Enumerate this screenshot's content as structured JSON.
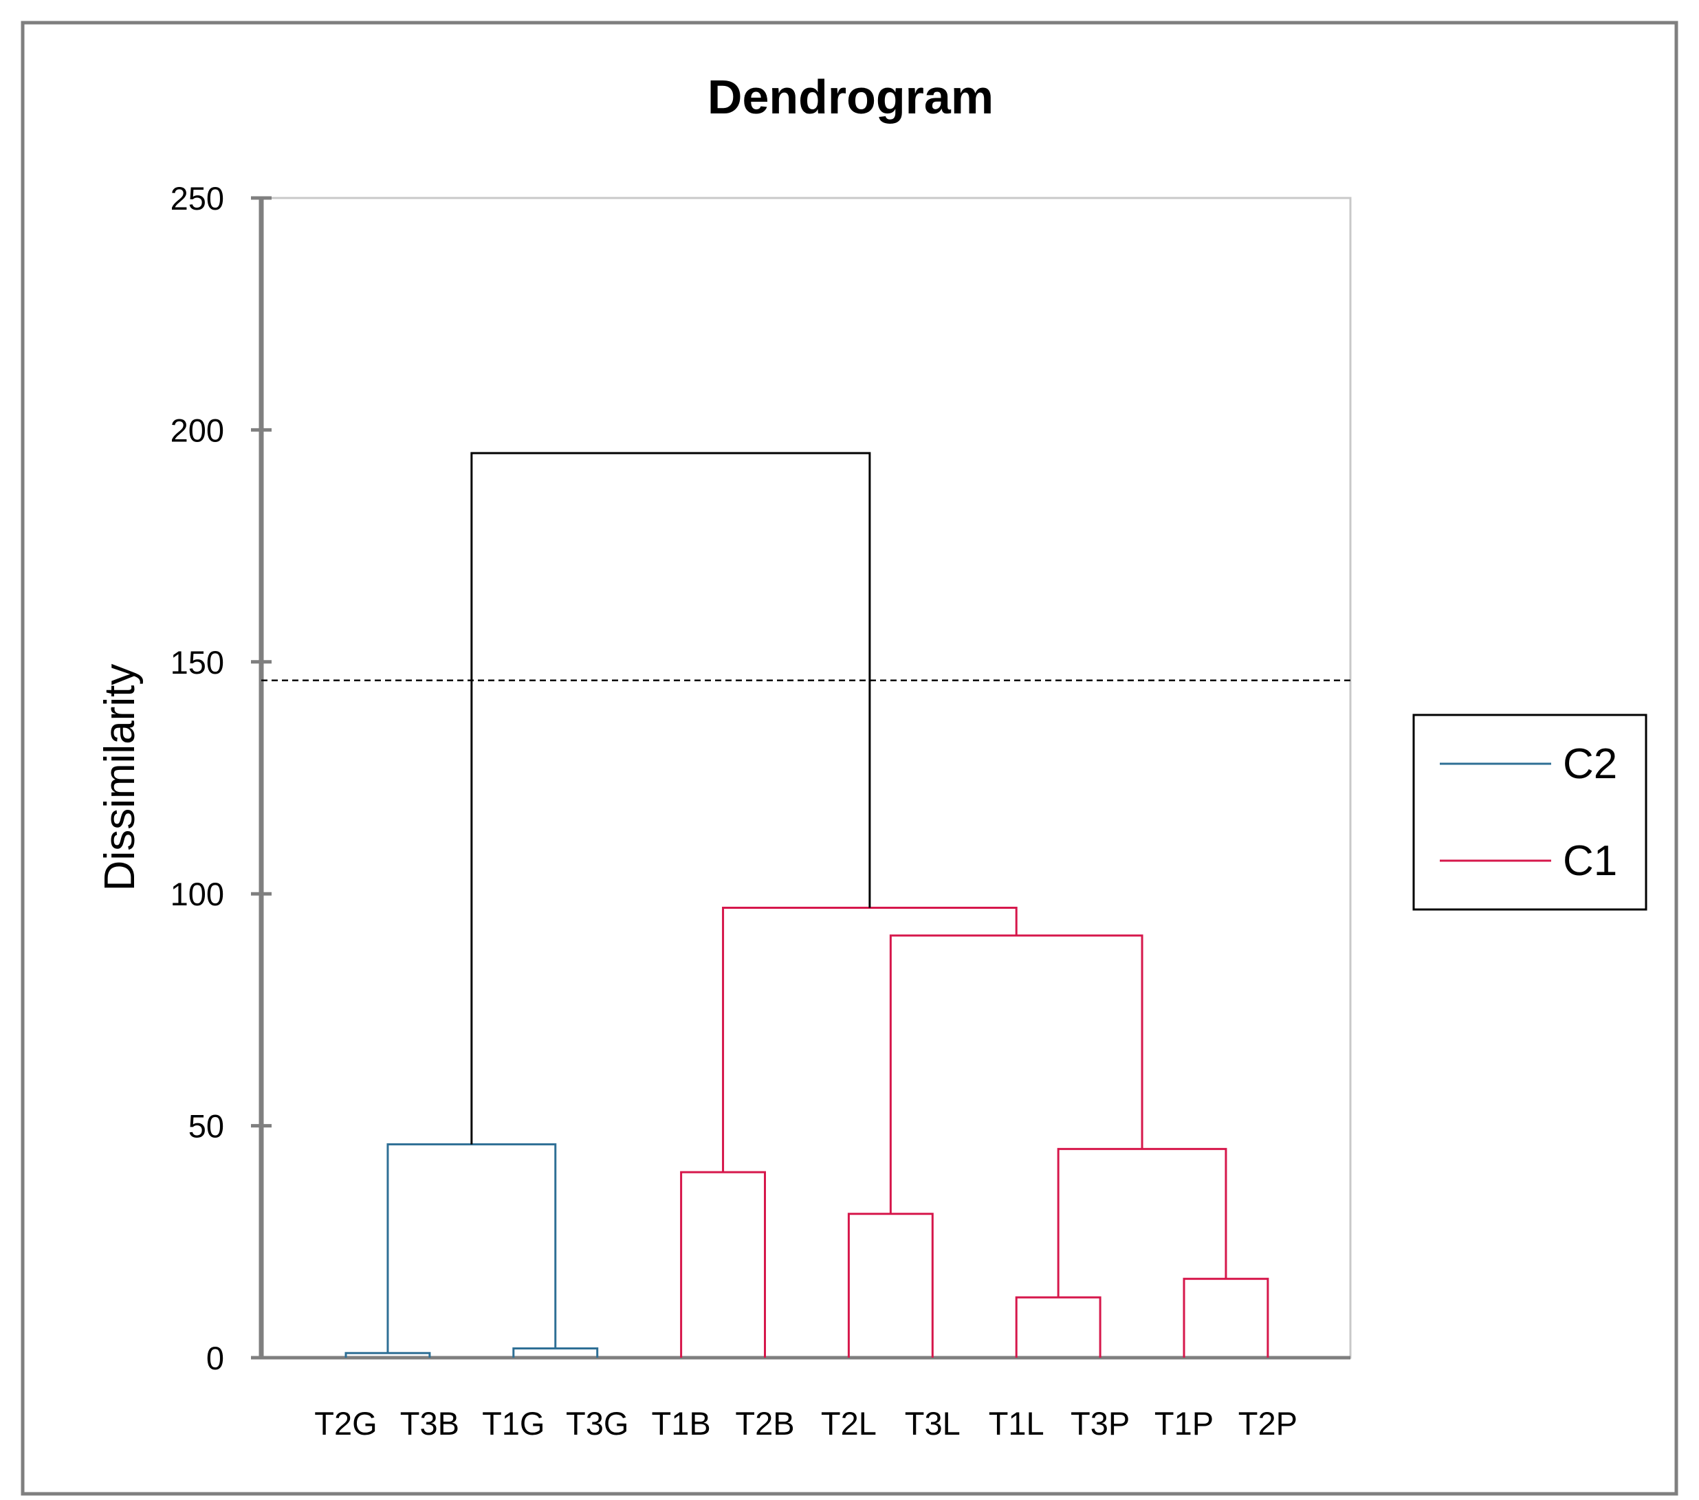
{
  "chart_data": {
    "type": "dendrogram",
    "title": "Dendrogram",
    "xlabel": "",
    "ylabel": "Dissimilarity",
    "ylim": [
      0,
      250
    ],
    "yticks": [
      0,
      50,
      100,
      150,
      200,
      250
    ],
    "cutoff": 146,
    "leaves": [
      "T2G",
      "T3B",
      "T1G",
      "T3G",
      "T1B",
      "T2B",
      "T2L",
      "T3L",
      "T1L",
      "T3P",
      "T1P",
      "T2P"
    ],
    "merges": [
      {
        "id": "m1",
        "left": "T2G",
        "right": "T3B",
        "height": 1,
        "cluster": "C2"
      },
      {
        "id": "m2",
        "left": "T1G",
        "right": "T3G",
        "height": 2,
        "cluster": "C2"
      },
      {
        "id": "m3",
        "left": "m1",
        "right": "m2",
        "height": 46,
        "cluster": "C2"
      },
      {
        "id": "m4",
        "left": "T1B",
        "right": "T2B",
        "height": 40,
        "cluster": "C1"
      },
      {
        "id": "m5",
        "left": "T2L",
        "right": "T3L",
        "height": 31,
        "cluster": "C1"
      },
      {
        "id": "m6",
        "left": "T1L",
        "right": "T3P",
        "height": 13,
        "cluster": "C1"
      },
      {
        "id": "m7",
        "left": "T1P",
        "right": "T2P",
        "height": 17,
        "cluster": "C1"
      },
      {
        "id": "m8",
        "left": "m6",
        "right": "m7",
        "height": 45,
        "cluster": "C1"
      },
      {
        "id": "m9",
        "left": "m5",
        "right": "m8",
        "height": 91,
        "cluster": "C1"
      },
      {
        "id": "m10",
        "left": "m4",
        "right": "m9",
        "height": 97,
        "cluster": "C1"
      },
      {
        "id": "m11",
        "left": "m3",
        "right": "m10",
        "height": 195,
        "cluster": "root"
      }
    ],
    "legend": {
      "position": "right",
      "entries": [
        {
          "label": "C2",
          "color": "#2e6f95"
        },
        {
          "label": "C1",
          "color": "#d6174b"
        }
      ]
    },
    "root_color": "#000000"
  }
}
